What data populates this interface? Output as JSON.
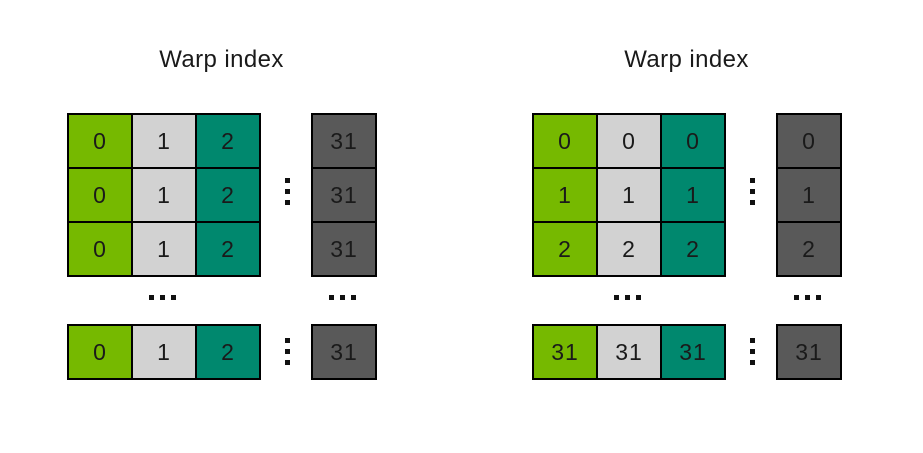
{
  "colors": {
    "green": "#76b900",
    "light_gray": "#d2d2d2",
    "teal": "#00886e",
    "dark_gray": "#595959",
    "border": "#000000",
    "text": "#1a1a1a",
    "dot": "#111111"
  },
  "panels": [
    {
      "title": "Warp index",
      "grid_rows": [
        [
          "0",
          "1",
          "2"
        ],
        [
          "0",
          "1",
          "2"
        ],
        [
          "0",
          "1",
          "2"
        ]
      ],
      "dark_column": [
        "31",
        "31",
        "31"
      ],
      "bottom_row": [
        "0",
        "1",
        "2"
      ],
      "bottom_dark": "31"
    },
    {
      "title": "Warp index",
      "grid_rows": [
        [
          "0",
          "0",
          "0"
        ],
        [
          "1",
          "1",
          "1"
        ],
        [
          "2",
          "2",
          "2"
        ]
      ],
      "dark_column": [
        "0",
        "1",
        "2"
      ],
      "bottom_row": [
        "31",
        "31",
        "31"
      ],
      "bottom_dark": "31"
    }
  ]
}
